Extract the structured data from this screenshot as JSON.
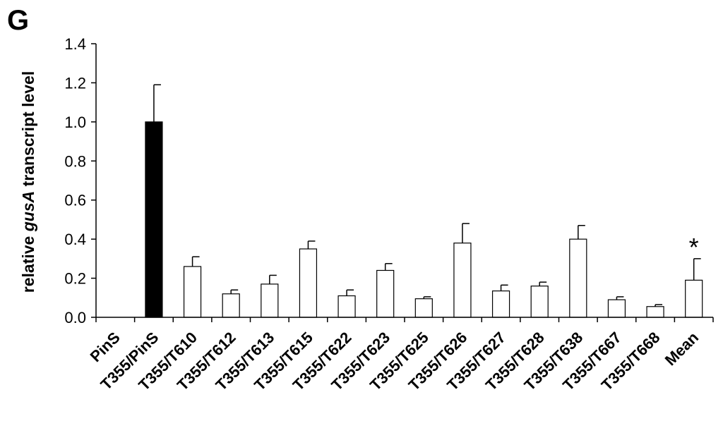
{
  "panel_label": "G",
  "chart_data": {
    "type": "bar",
    "ylabel_prefix": "relative ",
    "ylabel_italic": "gusA",
    "ylabel_suffix": " transcript level",
    "xlabel": "",
    "ylim": [
      0,
      1.4
    ],
    "yticks": [
      "0.0",
      "0.2",
      "0.4",
      "0.6",
      "0.8",
      "1.0",
      "1.2",
      "1.4"
    ],
    "categories": [
      "PinS",
      "T355/PinS",
      "T355/T610",
      "T355/T612",
      "T355/T613",
      "T355/T615",
      "T355/T622",
      "T355/T623",
      "T355/T625",
      "T355/T626",
      "T355/T627",
      "T355/T628",
      "T355/T638",
      "T355/T667",
      "T355/T668",
      "Mean"
    ],
    "values": [
      0,
      1.0,
      0.26,
      0.12,
      0.17,
      0.35,
      0.11,
      0.24,
      0.095,
      0.38,
      0.135,
      0.16,
      0.4,
      0.09,
      0.055,
      0.19
    ],
    "errors": [
      0,
      0.19,
      0.05,
      0.02,
      0.045,
      0.04,
      0.03,
      0.035,
      0.01,
      0.1,
      0.03,
      0.02,
      0.07,
      0.015,
      0.01,
      0.11
    ],
    "bar_colors": [
      "#ffffff",
      "#000000",
      "#ffffff",
      "#ffffff",
      "#ffffff",
      "#ffffff",
      "#ffffff",
      "#ffffff",
      "#ffffff",
      "#ffffff",
      "#ffffff",
      "#ffffff",
      "#ffffff",
      "#ffffff",
      "#ffffff",
      "#ffffff"
    ],
    "annotations": [
      {
        "category": "Mean",
        "text": "*"
      }
    ],
    "grid": false,
    "legend": "none"
  }
}
